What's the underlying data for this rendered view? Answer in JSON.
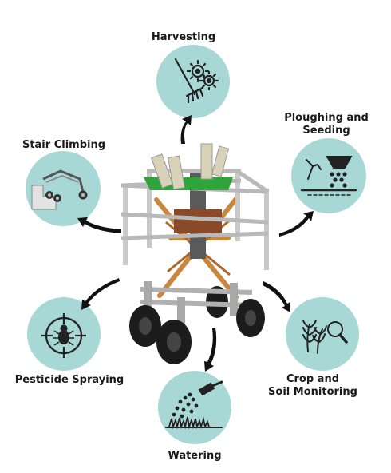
{
  "labels": {
    "harvesting": "Harvesting",
    "ploughing_line1": "Ploughing and",
    "ploughing_line2": "Seeding",
    "stair_climbing": "Stair Climbing",
    "pesticide_spraying": "Pesticide Spraying",
    "crop_line1": "Crop and",
    "crop_line2": "Soil Monitoring",
    "watering": "Watering"
  },
  "colors": {
    "circle_fill": "#a8d8d6",
    "icon_stroke": "#222222",
    "arrow": "#111111",
    "frame": "#c9c9c9",
    "tray": "#2fa43a",
    "scissor": "#c8863f",
    "tire": "#1c1c1c"
  },
  "icons": {
    "harvesting": "rake-gears-icon",
    "ploughing": "seed-hopper-icon",
    "stair_climbing": "stair-robot-icon",
    "pesticide": "crosshair-bug-icon",
    "crop": "wheat-magnifier-icon",
    "watering": "sprayer-grass-icon"
  }
}
